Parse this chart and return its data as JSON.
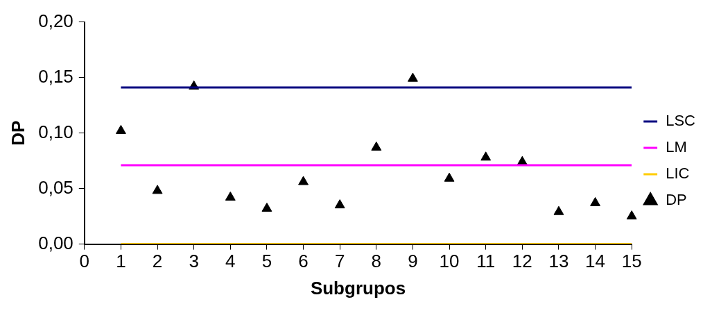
{
  "chart_data": {
    "type": "line",
    "xlabel": "Subgrupos",
    "ylabel": "DP",
    "x": [
      1,
      2,
      3,
      4,
      5,
      6,
      7,
      8,
      9,
      10,
      11,
      12,
      13,
      14,
      15
    ],
    "xlim": [
      0,
      15
    ],
    "xticks": [
      0,
      1,
      2,
      3,
      4,
      5,
      6,
      7,
      8,
      9,
      10,
      11,
      12,
      13,
      14,
      15
    ],
    "ylim": [
      0,
      0.2
    ],
    "yticks": [
      {
        "value": 0,
        "label": "0,00"
      },
      {
        "value": 0.05,
        "label": "0,05"
      },
      {
        "value": 0.1,
        "label": "0,10"
      },
      {
        "value": 0.15,
        "label": "0,15"
      },
      {
        "value": 0.2,
        "label": "0,20"
      }
    ],
    "grid": false,
    "legend": "right",
    "marker": "none",
    "line_style": "solid",
    "series": [
      {
        "name": "LSC",
        "color": "#000080",
        "values": [
          0.141,
          0.141,
          0.141,
          0.141,
          0.141,
          0.141,
          0.141,
          0.141,
          0.141,
          0.141,
          0.141,
          0.141,
          0.141,
          0.141,
          0.141
        ]
      },
      {
        "name": "LM",
        "color": "#ff00ff",
        "values": [
          0.071,
          0.071,
          0.071,
          0.071,
          0.071,
          0.071,
          0.071,
          0.071,
          0.071,
          0.071,
          0.071,
          0.071,
          0.071,
          0.071,
          0.071
        ]
      },
      {
        "name": "LIC",
        "color": "#ffcc00",
        "values": [
          0,
          0,
          0,
          0,
          0,
          0,
          0,
          0,
          0,
          0,
          0,
          0,
          0,
          0,
          0
        ]
      },
      {
        "name": "DP",
        "color": "#000000",
        "type": "scatter",
        "marker": "triangle",
        "values": [
          0.102,
          0.048,
          0.142,
          0.042,
          0.032,
          0.056,
          0.035,
          0.087,
          0.149,
          0.059,
          0.078,
          0.074,
          0.029,
          0.037,
          0.025
        ]
      }
    ]
  }
}
